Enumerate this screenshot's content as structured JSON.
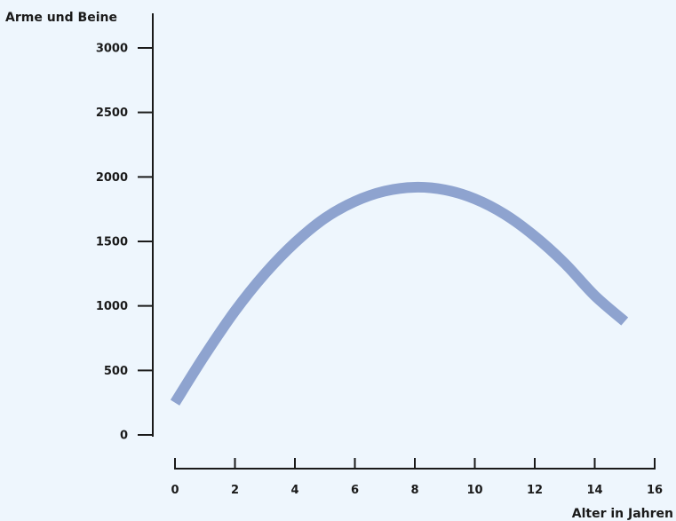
{
  "chart_data": {
    "type": "line",
    "ylabel": "Arme und Beine",
    "xlabel": "Alter in Jahren",
    "xlim": [
      0,
      16
    ],
    "ylim": [
      0,
      3000
    ],
    "xticks": [
      "0",
      "2",
      "4",
      "6",
      "8",
      "10",
      "12",
      "14",
      "16"
    ],
    "yticks": [
      "0",
      "500",
      "1000",
      "1500",
      "2000",
      "2500",
      "3000"
    ],
    "series": [
      {
        "color": "#8ea3cf",
        "x": [
          0,
          1,
          2,
          3,
          4,
          5,
          6,
          7,
          8,
          9,
          10,
          11,
          12,
          13,
          14,
          15
        ],
        "y": [
          250,
          620,
          960,
          1250,
          1490,
          1680,
          1810,
          1890,
          1920,
          1900,
          1830,
          1710,
          1540,
          1330,
          1080,
          880
        ]
      }
    ]
  }
}
